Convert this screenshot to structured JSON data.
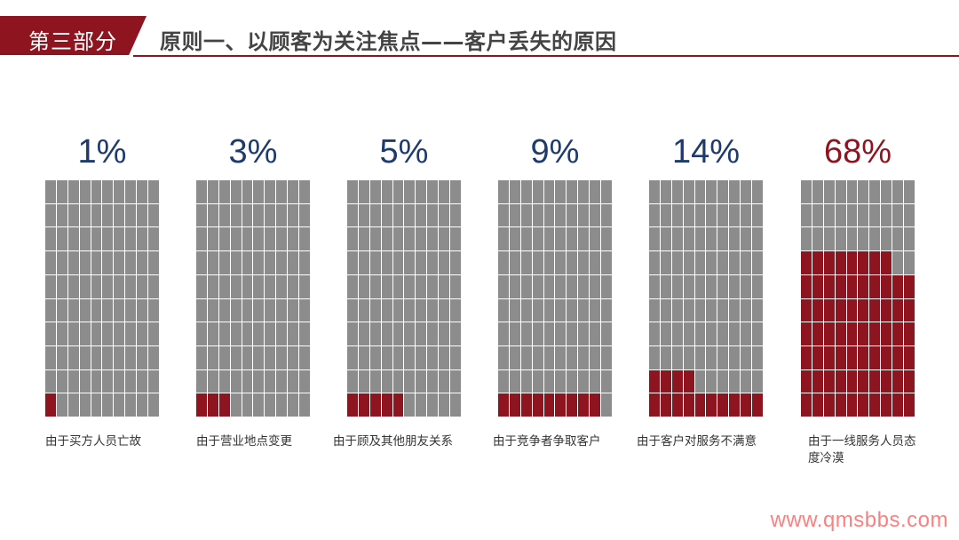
{
  "header": {
    "section_label": "第三部分",
    "title": "原则一、以顾客为关注焦点——客户丢失的原因"
  },
  "colors": {
    "accent": "#8e1520",
    "cell": "#8c8c8c",
    "number": "#1d3b6e"
  },
  "chart_data": {
    "type": "waffle",
    "grid": [
      10,
      10
    ],
    "items": [
      {
        "percent_label": "1%",
        "value": 1,
        "caption": "由于买方人员亡故"
      },
      {
        "percent_label": "3%",
        "value": 3,
        "caption": "由于营业地点变更"
      },
      {
        "percent_label": "5%",
        "value": 5,
        "caption": "由于顾及其他朋友关系"
      },
      {
        "percent_label": "9%",
        "value": 9,
        "caption": "由于竞争者争取客户"
      },
      {
        "percent_label": "14%",
        "value": 14,
        "caption": "由于客户对服务不满意"
      },
      {
        "percent_label": "68%",
        "value": 68,
        "caption": "由于一线服务人员态度冷漠",
        "highlight": true
      }
    ]
  },
  "watermark": "www.qmsbbs.com"
}
